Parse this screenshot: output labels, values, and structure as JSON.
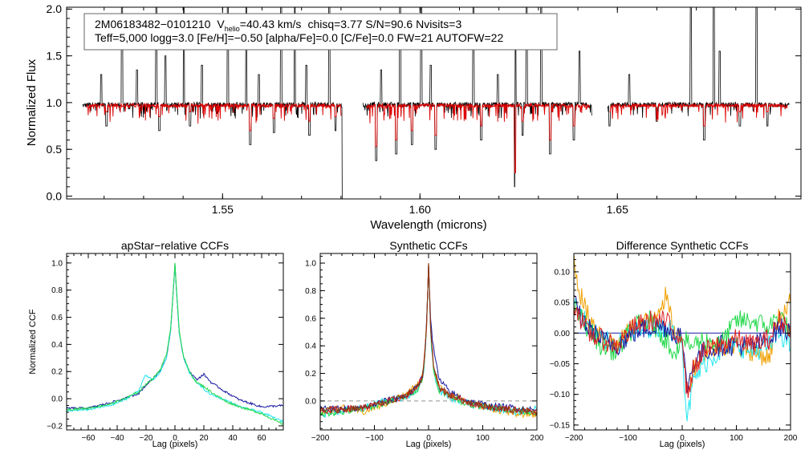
{
  "colors": {
    "axis": "#000000",
    "obs": "#000000",
    "model": "#dd0000",
    "ccf_cyan": "#22e6f0",
    "ccf_blue": "#1a1aa0",
    "ccf_green": "#22d84a",
    "ccf_orange": "#f0a000",
    "ccf_red": "#dd2020",
    "ccf_brown": "#8a3a10",
    "zero_line": "#8f8f8f"
  },
  "chart_data": [
    {
      "type": "line",
      "id": "spectrum",
      "title": "",
      "xlabel": "Wavelength (microns)",
      "ylabel": "Normalized Flux",
      "xlim": [
        1.5105,
        1.6965
      ],
      "ylim": [
        -0.03,
        2.02
      ],
      "xticks": [
        1.55,
        1.6,
        1.65
      ],
      "xticklabels": [
        "1.55",
        "1.60",
        "1.65"
      ],
      "yticks": [
        0.0,
        0.5,
        1.0,
        1.5,
        2.0
      ],
      "yticklabels": [
        "0.0",
        "0.5",
        "1.0",
        "1.5",
        "2.0"
      ],
      "annotation": {
        "id": "2M06183482−0101210",
        "v_prefix": "V",
        "v_sub": "helio",
        "v_value": "=40.43 km/s",
        "rest_line1": "chisq=3.77  S/N=90.6  Nvisits=3",
        "line2": "Teff=5,000 logg=3.0 [Fe/H]=−0.50 [alpha/Fe]=0.0 [C/Fe]=0.0 FW=21 AUTOFW=22"
      },
      "chips": [
        [
          1.5145,
          1.5805
        ],
        [
          1.5855,
          1.6435
        ],
        [
          1.6475,
          1.6935
        ]
      ],
      "model_chips": [
        [
          1.5155,
          1.58
        ],
        [
          1.5865,
          1.643
        ],
        [
          1.648,
          1.693
        ]
      ],
      "continuum": 0.98,
      "model_continuum": 0.97,
      "emission_spikes": [
        1.5193,
        1.5245,
        1.5283,
        1.5332,
        1.5355,
        1.5402,
        1.5448,
        1.5513,
        1.556,
        1.5592,
        1.5648,
        1.5683,
        1.5712,
        1.577,
        1.5902,
        1.595,
        1.6003,
        1.6027,
        1.6135,
        1.6197,
        1.6242,
        1.627,
        1.6307,
        1.6404,
        1.653,
        1.6686,
        1.6744,
        1.6759,
        1.6852
      ],
      "emission_heights": [
        1.3,
        2.02,
        1.35,
        2.02,
        1.5,
        2.02,
        1.4,
        2.02,
        2.02,
        1.3,
        2.02,
        2.02,
        1.4,
        2.02,
        1.35,
        2.02,
        2.02,
        1.4,
        2.02,
        1.3,
        1.6,
        2.02,
        2.02,
        1.55,
        1.3,
        2.02,
        2.02,
        1.55,
        2.02
      ],
      "absorption_lines": [
        [
          1.5206,
          0.75
        ],
        [
          1.534,
          0.7
        ],
        [
          1.5418,
          0.75
        ],
        [
          1.557,
          0.55
        ],
        [
          1.563,
          0.68
        ],
        [
          1.572,
          0.65
        ],
        [
          1.5786,
          0.7
        ],
        [
          1.5805,
          -0.03
        ],
        [
          1.5889,
          0.38
        ],
        [
          1.594,
          0.45
        ],
        [
          1.598,
          0.55
        ],
        [
          1.604,
          0.5
        ],
        [
          1.6155,
          0.6
        ],
        [
          1.6241,
          0.1
        ],
        [
          1.626,
          0.65
        ],
        [
          1.633,
          0.45
        ],
        [
          1.639,
          0.6
        ],
        [
          1.648,
          0.75
        ],
        [
          1.66,
          0.8
        ],
        [
          1.672,
          0.6
        ],
        [
          1.681,
          0.75
        ],
        [
          1.688,
          0.75
        ]
      ]
    },
    {
      "type": "line",
      "id": "apstar-ccf",
      "title": "apStar−relative CCFs",
      "xlabel": "Lag (pixels)",
      "ylabel": "Normalized CCF",
      "xlim": [
        -75,
        75
      ],
      "ylim": [
        -0.23,
        1.07
      ],
      "xticks": [
        -60,
        -40,
        -20,
        0,
        20,
        40,
        60
      ],
      "xticklabels": [
        "−60",
        "−40",
        "−20",
        "0",
        "20",
        "40",
        "60"
      ],
      "yticks": [
        -0.2,
        0.0,
        0.2,
        0.4,
        0.6,
        0.8,
        1.0
      ],
      "yticklabels": [
        "−0.2",
        "0.0",
        "0.2",
        "0.4",
        "0.6",
        "0.8",
        "1.0"
      ],
      "series": [
        {
          "name": "visit-1",
          "color": "#1a1aa0",
          "lags": [
            -75,
            -60,
            -45,
            -35,
            -25,
            -20,
            -15,
            -10,
            -6,
            -3,
            -1,
            0,
            1,
            3,
            6,
            10,
            15,
            20,
            25,
            35,
            45,
            60,
            75
          ],
          "values": [
            -0.07,
            -0.07,
            -0.03,
            0.0,
            0.04,
            0.1,
            0.15,
            0.21,
            0.3,
            0.5,
            0.82,
            0.99,
            0.8,
            0.48,
            0.3,
            0.2,
            0.14,
            0.18,
            0.12,
            0.05,
            -0.01,
            -0.06,
            -0.05
          ]
        },
        {
          "name": "visit-2",
          "color": "#22e6f0",
          "lags": [
            -75,
            -60,
            -45,
            -35,
            -25,
            -21,
            -15,
            -10,
            -6,
            -3,
            -1,
            0,
            1,
            3,
            6,
            10,
            15,
            20,
            25,
            35,
            45,
            60,
            75
          ],
          "values": [
            -0.09,
            -0.08,
            -0.05,
            -0.01,
            0.06,
            0.17,
            0.14,
            0.2,
            0.3,
            0.5,
            0.82,
            0.99,
            0.8,
            0.48,
            0.3,
            0.19,
            0.12,
            0.07,
            0.03,
            -0.01,
            -0.06,
            -0.1,
            -0.17
          ]
        },
        {
          "name": "visit-3",
          "color": "#22d84a",
          "lags": [
            -75,
            -60,
            -45,
            -35,
            -25,
            -20,
            -15,
            -10,
            -6,
            -3,
            -1,
            0,
            1,
            3,
            6,
            10,
            15,
            20,
            25,
            35,
            45,
            60,
            75
          ],
          "values": [
            -0.08,
            -0.07,
            -0.04,
            0.0,
            0.05,
            0.11,
            0.15,
            0.22,
            0.32,
            0.52,
            0.83,
            1.0,
            0.82,
            0.5,
            0.31,
            0.2,
            0.12,
            0.09,
            0.05,
            -0.02,
            -0.06,
            -0.11,
            -0.19
          ]
        }
      ]
    },
    {
      "type": "line",
      "id": "synthetic-ccf",
      "title": "Synthetic CCFs",
      "xlabel": "Lag (pixels)",
      "ylabel": "",
      "xlim": [
        -200,
        200
      ],
      "ylim": [
        -0.21,
        1.07
      ],
      "xticks": [
        -200,
        -100,
        0,
        100,
        200
      ],
      "xticklabels": [
        "−200",
        "−100",
        "0",
        "100",
        "200"
      ],
      "yticks": [
        0.0,
        0.2,
        0.4,
        0.6,
        0.8,
        1.0
      ],
      "yticklabels": [
        "0.0",
        "0.2",
        "0.4",
        "0.6",
        "0.8",
        "1.0"
      ],
      "zero_line": 0.0,
      "series": [
        {
          "name": "synthetic-1",
          "color": "#f0a000",
          "lags": [
            -200,
            -160,
            -120,
            -80,
            -40,
            -20,
            -10,
            -4,
            0,
            4,
            10,
            20,
            40,
            80,
            120,
            160,
            200
          ],
          "values": [
            -0.08,
            -0.05,
            -0.08,
            -0.02,
            0.05,
            0.12,
            0.2,
            0.5,
            1.0,
            0.5,
            0.22,
            0.1,
            0.05,
            -0.02,
            -0.06,
            -0.09,
            -0.1
          ]
        },
        {
          "name": "synthetic-2",
          "color": "#22e6f0",
          "lags": [
            -200,
            -160,
            -120,
            -80,
            -40,
            -20,
            -10,
            -4,
            0,
            4,
            10,
            20,
            40,
            80,
            120,
            160,
            200
          ],
          "values": [
            -0.1,
            -0.07,
            -0.05,
            0.0,
            0.03,
            0.08,
            0.18,
            0.48,
            0.99,
            0.45,
            0.2,
            0.07,
            0.02,
            -0.03,
            -0.05,
            -0.08,
            -0.06
          ]
        },
        {
          "name": "synthetic-3",
          "color": "#22d84a",
          "lags": [
            -200,
            -160,
            -120,
            -80,
            -40,
            -20,
            -10,
            -4,
            0,
            4,
            10,
            20,
            40,
            80,
            120,
            160,
            200
          ],
          "values": [
            -0.09,
            -0.08,
            -0.06,
            -0.01,
            0.04,
            0.09,
            0.18,
            0.5,
            0.99,
            0.48,
            0.2,
            0.08,
            0.03,
            -0.03,
            -0.04,
            -0.07,
            -0.08
          ]
        },
        {
          "name": "synthetic-4",
          "color": "#1a1aa0",
          "lags": [
            -200,
            -160,
            -120,
            -80,
            -40,
            -20,
            -10,
            -4,
            0,
            4,
            10,
            20,
            40,
            80,
            120,
            160,
            200
          ],
          "values": [
            -0.06,
            -0.06,
            -0.05,
            0.0,
            0.04,
            0.1,
            0.2,
            0.52,
            0.99,
            0.58,
            0.35,
            0.15,
            0.06,
            -0.01,
            -0.04,
            -0.05,
            -0.07
          ]
        },
        {
          "name": "synthetic-5",
          "color": "#dd2020",
          "lags": [
            -200,
            -160,
            -120,
            -80,
            -40,
            -20,
            -10,
            -4,
            0,
            4,
            10,
            20,
            40,
            80,
            120,
            160,
            200
          ],
          "values": [
            -0.07,
            -0.06,
            -0.05,
            -0.01,
            0.04,
            0.1,
            0.2,
            0.5,
            1.0,
            0.5,
            0.23,
            0.1,
            0.04,
            -0.02,
            -0.05,
            -0.06,
            -0.08
          ]
        },
        {
          "name": "synthetic-6",
          "color": "#8a3a10",
          "lags": [
            -200,
            -160,
            -120,
            -80,
            -40,
            -20,
            -10,
            -4,
            0,
            4,
            10,
            20,
            40,
            80,
            120,
            160,
            200
          ],
          "values": [
            -0.07,
            -0.06,
            -0.05,
            -0.01,
            0.04,
            0.1,
            0.2,
            0.5,
            1.0,
            0.5,
            0.23,
            0.1,
            0.04,
            -0.02,
            -0.05,
            -0.07,
            -0.08
          ]
        }
      ]
    },
    {
      "type": "line",
      "id": "difference-ccf",
      "title": "Difference Synthetic CCFs",
      "xlabel": "Lag (pixels)",
      "ylabel": "",
      "xlim": [
        -200,
        200
      ],
      "ylim": [
        -0.158,
        0.13
      ],
      "xticks": [
        -200,
        -100,
        0,
        100,
        200
      ],
      "xticklabels": [
        "−200",
        "−100",
        "0",
        "100",
        "200"
      ],
      "yticks": [
        -0.15,
        -0.1,
        -0.05,
        0.0,
        0.05,
        0.1
      ],
      "yticklabels": [
        "−0.15",
        "−0.10",
        "−0.05",
        "0.00",
        "0.05",
        "0.10"
      ],
      "zero_line": 0.0,
      "series": [
        {
          "name": "diff-1",
          "color": "#f0a000",
          "lags": [
            -200,
            -190,
            -175,
            -150,
            -120,
            -90,
            -60,
            -30,
            -15,
            -5,
            0,
            5,
            10,
            20,
            40,
            70,
            100,
            130,
            160,
            180,
            200
          ],
          "values": [
            0.12,
            0.07,
            0.03,
            0.0,
            -0.02,
            0.01,
            0.02,
            0.06,
            0.0,
            0.0,
            -0.02,
            -0.06,
            -0.09,
            -0.06,
            -0.03,
            -0.02,
            -0.02,
            -0.03,
            -0.04,
            0.03,
            0.05
          ]
        },
        {
          "name": "diff-2",
          "color": "#22e6f0",
          "lags": [
            -200,
            -190,
            -175,
            -150,
            -120,
            -90,
            -60,
            -30,
            -15,
            -5,
            0,
            5,
            10,
            20,
            40,
            70,
            100,
            130,
            160,
            180,
            200
          ],
          "values": [
            0.06,
            0.04,
            0.01,
            -0.01,
            -0.02,
            0.0,
            0.01,
            0.01,
            0.0,
            0.0,
            -0.02,
            -0.1,
            -0.14,
            -0.08,
            -0.05,
            -0.03,
            -0.02,
            -0.03,
            -0.02,
            0.0,
            -0.02
          ]
        },
        {
          "name": "diff-3",
          "color": "#22d84a",
          "lags": [
            -200,
            -190,
            -175,
            -150,
            -120,
            -90,
            -60,
            -30,
            -15,
            -5,
            0,
            5,
            10,
            20,
            40,
            70,
            100,
            130,
            160,
            180,
            200
          ],
          "values": [
            0.04,
            0.03,
            0.01,
            -0.02,
            -0.03,
            0.01,
            0.02,
            -0.01,
            -0.03,
            -0.02,
            -0.01,
            -0.01,
            -0.02,
            -0.02,
            -0.01,
            -0.02,
            0.02,
            0.02,
            0.01,
            0.03,
            0.0
          ]
        },
        {
          "name": "diff-4",
          "color": "#1a1aa0",
          "lags": [
            -200,
            -190,
            -175,
            -150,
            -120,
            -90,
            -60,
            -30,
            -15,
            -5,
            0,
            5,
            10,
            20,
            40,
            70,
            100,
            130,
            160,
            180,
            200
          ],
          "values": [
            0.05,
            0.03,
            0.01,
            -0.01,
            -0.02,
            0.0,
            0.01,
            0.01,
            0.0,
            0.0,
            -0.01,
            -0.06,
            -0.09,
            -0.05,
            -0.03,
            -0.02,
            -0.02,
            -0.02,
            -0.01,
            0.01,
            0.0
          ]
        },
        {
          "name": "diff-5",
          "color": "#dd2020",
          "lags": [
            -200,
            -190,
            -175,
            -150,
            -120,
            -90,
            -60,
            -30,
            -15,
            -5,
            0,
            5,
            10,
            20,
            40,
            70,
            100,
            130,
            160,
            180,
            200
          ],
          "values": [
            0.05,
            0.03,
            0.0,
            -0.01,
            -0.02,
            0.01,
            0.02,
            0.02,
            0.0,
            0.0,
            -0.01,
            -0.07,
            -0.1,
            -0.06,
            -0.03,
            -0.02,
            -0.01,
            -0.02,
            -0.01,
            0.02,
            0.01
          ]
        }
      ]
    }
  ]
}
